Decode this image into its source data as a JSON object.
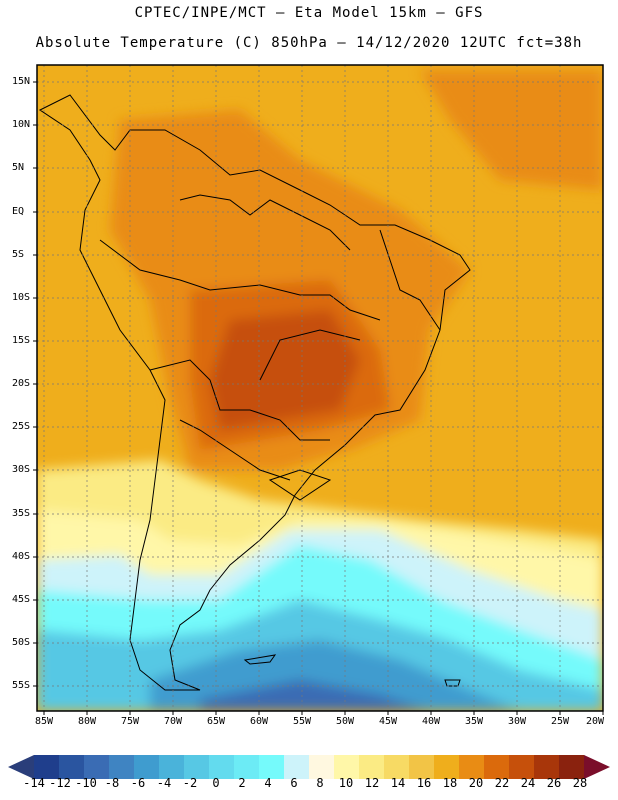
{
  "title": {
    "line1": "CPTEC/INPE/MCT –  Eta Model 15km – GFS",
    "line2": "Absolute Temperature (C) 850hPa – 14/12/2020 12UTC fct=38h"
  },
  "map": {
    "projection": "lat-lon",
    "lon_range": [
      -85,
      -20
    ],
    "lat_range": [
      -58,
      17
    ],
    "lat_labels": [
      "15N",
      "10N",
      "5N",
      "EQ",
      "5S",
      "10S",
      "15S",
      "20S",
      "25S",
      "30S",
      "35S",
      "40S",
      "45S",
      "50S",
      "55S"
    ],
    "lon_labels": [
      "85W",
      "80W",
      "75W",
      "70W",
      "65W",
      "60W",
      "55W",
      "50W",
      "45W",
      "40W",
      "35W",
      "30W",
      "25W",
      "20W"
    ]
  },
  "colorbar": {
    "labels": [
      "-14",
      "-12",
      "-10",
      "-8",
      "-6",
      "-4",
      "-2",
      "0",
      "2",
      "4",
      "6",
      "8",
      "10",
      "12",
      "14",
      "16",
      "18",
      "20",
      "22",
      "24",
      "26",
      "28"
    ],
    "colors": [
      "#1f3e8c",
      "#2a55a0",
      "#3a6cb4",
      "#3f84c2",
      "#3f9ccf",
      "#4ab3da",
      "#57c8e4",
      "#63dbee",
      "#6cebf5",
      "#75fafb",
      "#cdf3fa",
      "#fff8e0",
      "#fff7a8",
      "#fbeb84",
      "#f7da64",
      "#f2c446",
      "#efae1c",
      "#e98c14",
      "#db6a0c",
      "#c6500b",
      "#a8360a",
      "#8a220e"
    ],
    "low_arrow_color": "#2a3e7a",
    "high_arrow_color": "#7a0e2a"
  }
}
